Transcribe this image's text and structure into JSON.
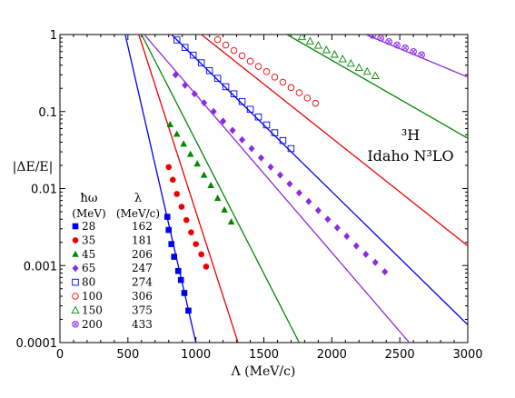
{
  "chart_data": {
    "type": "line",
    "y_scale": "log",
    "xlim": [
      0,
      3000
    ],
    "ylim": [
      0.0001,
      1
    ],
    "x_ticks": [
      "0",
      "500",
      "1000",
      "1500",
      "2000",
      "2500",
      "3000"
    ],
    "y_ticks": [
      "1",
      "0.1",
      "0.01",
      "0.001",
      "0.0001"
    ],
    "xlabel": "Λ (MeV/c)",
    "ylabel": "|ΔE/E|",
    "annotation_line1": "³H",
    "annotation_line2": "Idaho N³LO",
    "legend": {
      "header_hw": "ħω",
      "header_hw_unit": "(MeV)",
      "header_lambda": "λ",
      "header_lambda_unit": "(MeV/c)",
      "position": "bottom-left"
    },
    "series": [
      {
        "hw": "28",
        "lambda": "162",
        "color": "#0000ee",
        "marker": "square-filled",
        "line": [
          [
            480,
            1.0
          ],
          [
            1000,
            0.0001
          ]
        ],
        "points": [
          [
            790,
            0.0043
          ],
          [
            800,
            0.0029
          ],
          [
            820,
            0.0019
          ],
          [
            840,
            0.0013
          ],
          [
            870,
            0.00085
          ],
          [
            890,
            0.00065
          ],
          [
            915,
            0.00044
          ],
          [
            945,
            0.00026
          ]
        ]
      },
      {
        "hw": "35",
        "lambda": "181",
        "color": "#ee0000",
        "marker": "circle-filled",
        "line": [
          [
            580,
            1.0
          ],
          [
            1310,
            0.0001
          ]
        ],
        "points": [
          [
            800,
            0.019
          ],
          [
            830,
            0.013
          ],
          [
            860,
            0.0085
          ],
          [
            895,
            0.0058
          ],
          [
            930,
            0.0039
          ],
          [
            965,
            0.0027
          ],
          [
            1000,
            0.0019
          ],
          [
            1040,
            0.0014
          ],
          [
            1075,
            0.00097
          ]
        ]
      },
      {
        "hw": "45",
        "lambda": "206",
        "color": "#008800",
        "marker": "triangle-filled",
        "line": [
          [
            600,
            1.0
          ],
          [
            1760,
            0.0001
          ]
        ],
        "points": [
          [
            810,
            0.068
          ],
          [
            860,
            0.051
          ],
          [
            910,
            0.038
          ],
          [
            960,
            0.028
          ],
          [
            1010,
            0.021
          ],
          [
            1060,
            0.015
          ],
          [
            1110,
            0.011
          ],
          [
            1160,
            0.0075
          ],
          [
            1210,
            0.0053
          ],
          [
            1260,
            0.0037
          ]
        ]
      },
      {
        "hw": "65",
        "lambda": "247",
        "color": "#8a2be2",
        "marker": "diamond-filled",
        "line": [
          [
            620,
            1.0
          ],
          [
            2570,
            0.0001
          ]
        ],
        "points": [
          [
            850,
            0.3
          ],
          [
            920,
            0.22
          ],
          [
            990,
            0.17
          ],
          [
            1060,
            0.13
          ],
          [
            1130,
            0.1
          ],
          [
            1200,
            0.075
          ],
          [
            1270,
            0.057
          ],
          [
            1340,
            0.043
          ],
          [
            1410,
            0.033
          ],
          [
            1480,
            0.025
          ],
          [
            1550,
            0.019
          ],
          [
            1620,
            0.015
          ],
          [
            1690,
            0.0115
          ],
          [
            1760,
            0.0088
          ],
          [
            1830,
            0.0068
          ],
          [
            1900,
            0.0052
          ],
          [
            1970,
            0.004
          ],
          [
            2040,
            0.0031
          ],
          [
            2110,
            0.0024
          ],
          [
            2180,
            0.0018
          ],
          [
            2250,
            0.0014
          ],
          [
            2320,
            0.0011
          ],
          [
            2390,
            0.00083
          ]
        ]
      },
      {
        "hw": "80",
        "lambda": "274",
        "color": "#0000ee",
        "marker": "square-open",
        "line": [
          [
            820,
            1.0
          ],
          [
            3000,
            0.00017
          ]
        ],
        "points": [
          [
            860,
            0.85
          ],
          [
            920,
            0.68
          ],
          [
            980,
            0.54
          ],
          [
            1040,
            0.43
          ],
          [
            1100,
            0.34
          ],
          [
            1160,
            0.27
          ],
          [
            1220,
            0.21
          ],
          [
            1280,
            0.17
          ],
          [
            1340,
            0.135
          ],
          [
            1400,
            0.107
          ],
          [
            1460,
            0.085
          ],
          [
            1520,
            0.067
          ],
          [
            1580,
            0.053
          ],
          [
            1640,
            0.042
          ],
          [
            1700,
            0.033
          ]
        ]
      },
      {
        "hw": "100",
        "lambda": "306",
        "color": "#ee0000",
        "marker": "circle-open",
        "line": [
          [
            1040,
            1.0
          ],
          [
            3000,
            0.0018
          ]
        ],
        "points": [
          [
            1160,
            0.86
          ],
          [
            1220,
            0.73
          ],
          [
            1280,
            0.62
          ],
          [
            1340,
            0.53
          ],
          [
            1400,
            0.45
          ],
          [
            1460,
            0.385
          ],
          [
            1520,
            0.33
          ],
          [
            1580,
            0.28
          ],
          [
            1640,
            0.24
          ],
          [
            1700,
            0.205
          ],
          [
            1760,
            0.175
          ],
          [
            1820,
            0.15
          ],
          [
            1880,
            0.128
          ]
        ]
      },
      {
        "hw": "150",
        "lambda": "375",
        "color": "#008800",
        "marker": "triangle-open",
        "line": [
          [
            1670,
            1.0
          ],
          [
            3000,
            0.045
          ]
        ],
        "points": [
          [
            1780,
            0.93
          ],
          [
            1840,
            0.82
          ],
          [
            1900,
            0.72
          ],
          [
            1960,
            0.63
          ],
          [
            2020,
            0.55
          ],
          [
            2080,
            0.48
          ],
          [
            2140,
            0.42
          ],
          [
            2200,
            0.37
          ],
          [
            2260,
            0.33
          ],
          [
            2320,
            0.29
          ]
        ]
      },
      {
        "hw": "200",
        "lambda": "433",
        "color": "#8a2be2",
        "marker": "circle-cross",
        "line": [
          [
            2250,
            1.0
          ],
          [
            3000,
            0.28
          ]
        ],
        "points": [
          [
            2300,
            0.98
          ],
          [
            2360,
            0.9
          ],
          [
            2420,
            0.81
          ],
          [
            2480,
            0.73
          ],
          [
            2540,
            0.67
          ],
          [
            2600,
            0.6
          ],
          [
            2660,
            0.545
          ]
        ]
      }
    ]
  }
}
